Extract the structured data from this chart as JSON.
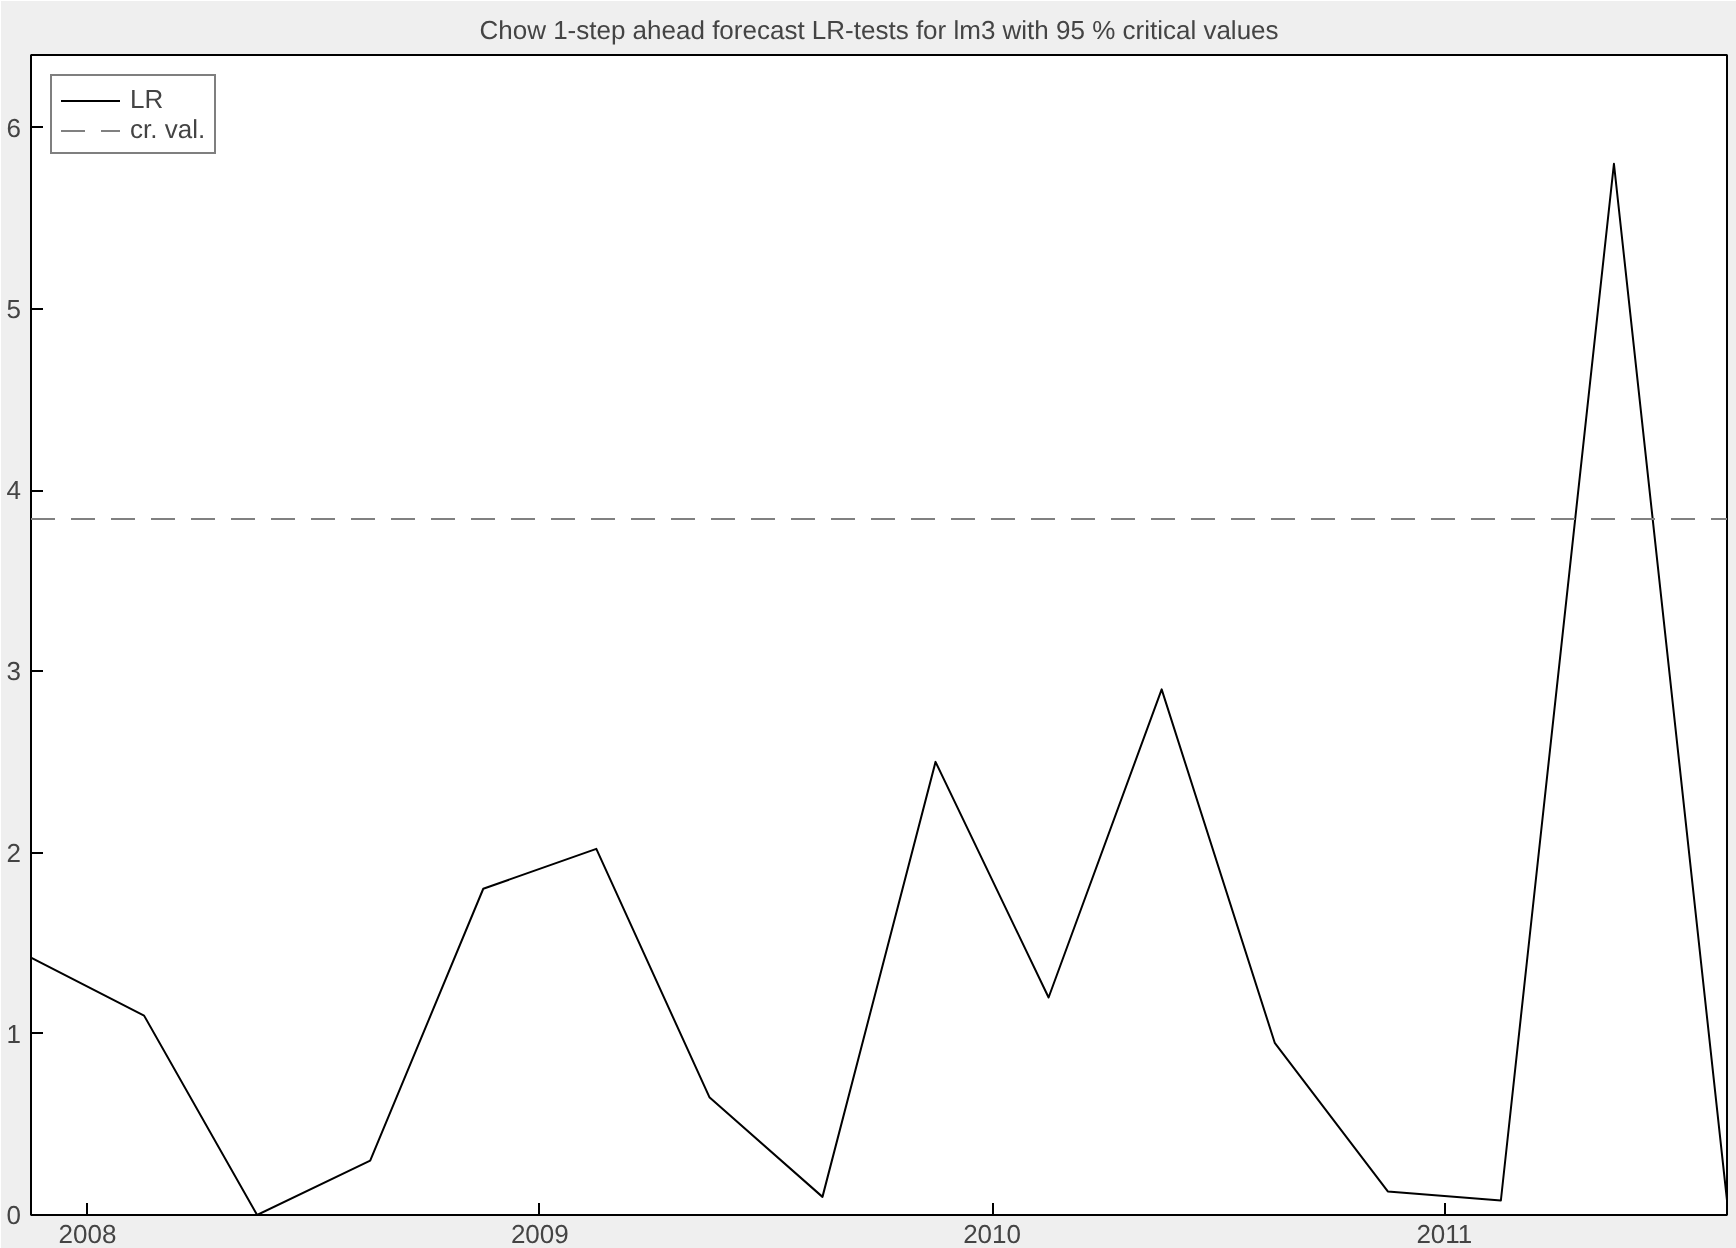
{
  "chart_data": {
    "type": "line",
    "title": "Chow 1-step ahead forecast LR-tests for lm3 with 95 % critical values",
    "x": [
      2007.875,
      2008.125,
      2008.375,
      2008.625,
      2008.875,
      2009.125,
      2009.375,
      2009.625,
      2009.875,
      2010.125,
      2010.375,
      2010.625,
      2010.875,
      2011.125,
      2011.375,
      2011.625
    ],
    "series": [
      {
        "name": "LR",
        "color": "#000000",
        "values": [
          1.42,
          1.1,
          0.0,
          0.3,
          1.8,
          2.02,
          0.65,
          0.1,
          2.5,
          1.2,
          2.9,
          0.95,
          0.13,
          0.08,
          5.8,
          0.08
        ]
      }
    ],
    "ref_lines": [
      {
        "axis": "y",
        "value": 3.84,
        "label": "cr. val.",
        "color": "#808080",
        "line_style": "dashed"
      }
    ],
    "xlim": [
      2007.875,
      2011.625
    ],
    "xticks": [
      2008,
      2009,
      2010,
      2011
    ],
    "ylim": [
      0,
      6.4
    ],
    "yticks": [
      0,
      1,
      2,
      3,
      4,
      5,
      6
    ],
    "grid": false,
    "legend": "top left",
    "marker": "none",
    "line_style": "solid"
  }
}
